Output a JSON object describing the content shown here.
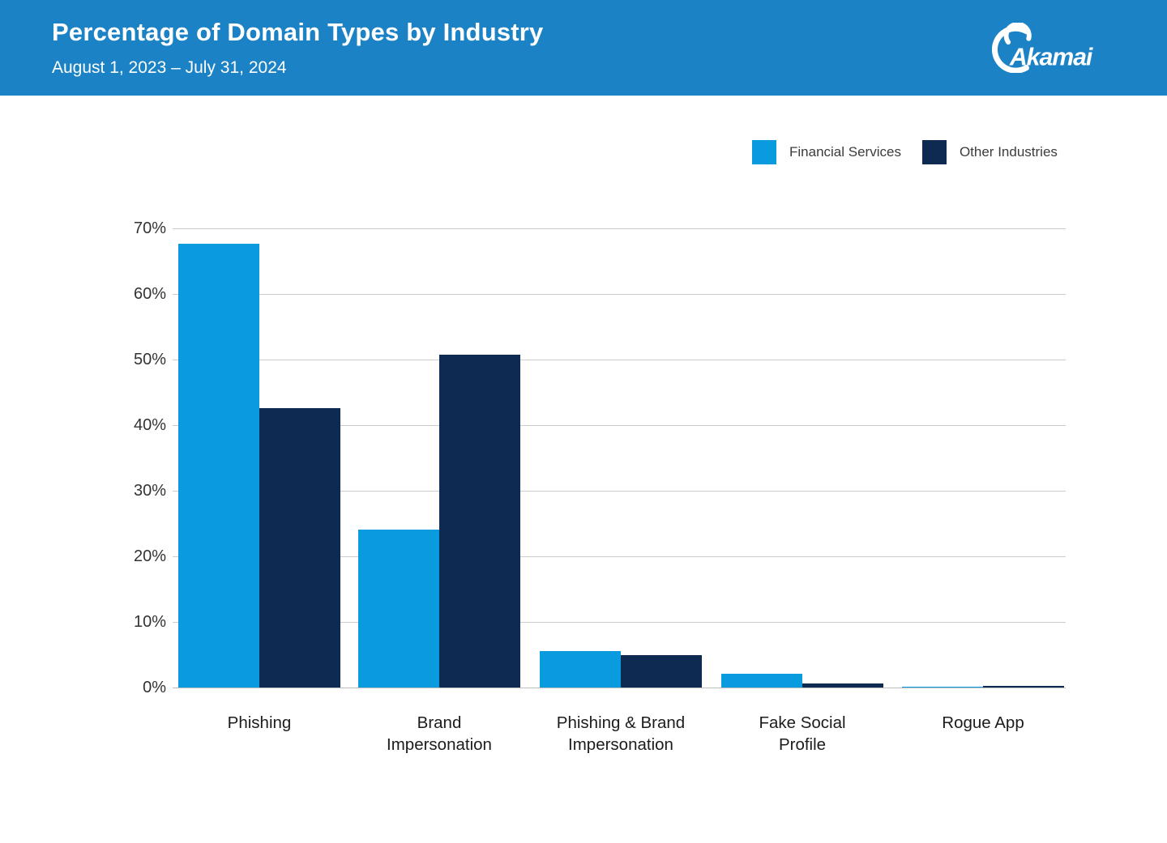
{
  "header": {
    "title": "Percentage of Domain Types by Industry",
    "subtitle": "August 1, 2023 – July 31, 2024",
    "background_color": "#1b82c6",
    "logo_text": "Akamai"
  },
  "legend": {
    "items": [
      {
        "label": "Financial Services",
        "color": "#0a9ade"
      },
      {
        "label": "Other Industries",
        "color": "#0e2a52"
      }
    ]
  },
  "chart_data": {
    "type": "bar",
    "title": "Percentage of Domain Types by Industry",
    "subtitle": "August 1, 2023 – July 31, 2024",
    "categories": [
      "Phishing",
      "Brand\nImpersonation",
      "Phishing & Brand\nImpersonation",
      "Fake Social\nProfile",
      "Rogue App"
    ],
    "series": [
      {
        "name": "Financial Services",
        "color": "#0a9ade",
        "values": [
          67.7,
          24.1,
          5.6,
          2.1,
          0.1
        ]
      },
      {
        "name": "Other Industries",
        "color": "#0e2a52",
        "values": [
          42.6,
          50.8,
          4.9,
          0.6,
          0.3
        ]
      }
    ],
    "xlabel": "",
    "ylabel": "",
    "ylim": [
      0,
      70
    ],
    "ytick_interval": 10,
    "yticks": [
      "0%",
      "10%",
      "20%",
      "30%",
      "40%",
      "50%",
      "60%",
      "70%"
    ],
    "grid": true,
    "legend_position": "top-right"
  }
}
